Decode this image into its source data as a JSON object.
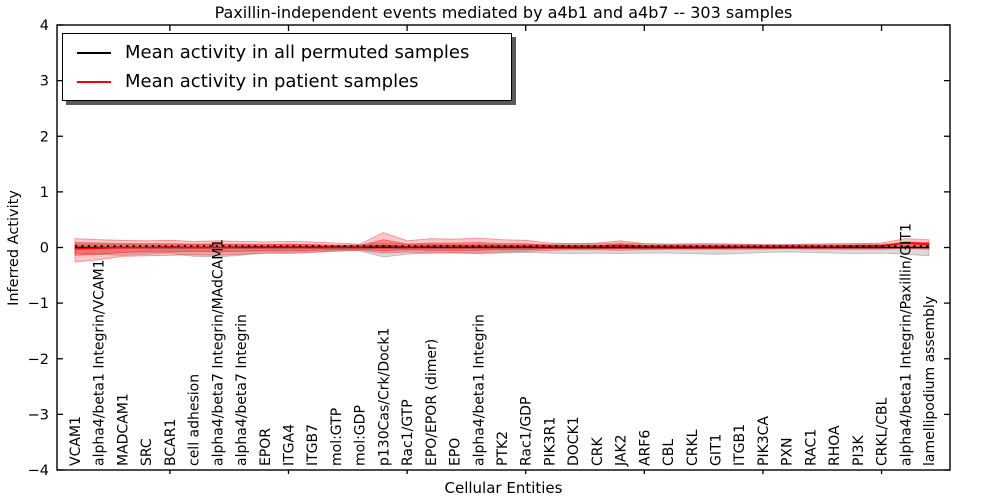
{
  "chart_data": {
    "type": "line",
    "title": "Paxillin-independent events mediated by a4b1 and a4b7 -- 303 samples",
    "xlabel": "Cellular Entities",
    "ylabel": "Inferred Activity",
    "ylim": [
      -4,
      4
    ],
    "yticks": [
      4,
      3,
      2,
      1,
      0,
      -1,
      -2,
      -3,
      -4
    ],
    "ytick_labels": [
      "4",
      "3",
      "2",
      "1",
      "0",
      "−1",
      "−2",
      "−3",
      "−4"
    ],
    "top_tick_indices": [
      4,
      9,
      14,
      19,
      24,
      29,
      34
    ],
    "grid": false,
    "legend": {
      "position": "upper left",
      "entries": [
        {
          "label": "Mean activity in all permuted samples",
          "color": "#000000"
        },
        {
          "label": "Mean activity in patient samples",
          "color": "#ff0000"
        }
      ]
    },
    "categories": [
      "VCAM1",
      "alpha4/beta1 Integrin/VCAM1",
      "MADCAM1",
      "SRC",
      "BCAR1",
      "cell adhesion",
      "alpha4/beta7 Integrin/MAdCAM1",
      "alpha4/beta7 Integrin",
      "EPOR",
      "ITGA4",
      "ITGB7",
      "mol:GTP",
      "mol:GDP",
      "p130Cas/Crk/Dock1",
      "Rac1/GTP",
      "EPO/EPOR (dimer)",
      "EPO",
      "alpha4/beta1 Integrin",
      "PTK2",
      "Rac1/GDP",
      "PIK3R1",
      "DOCK1",
      "CRK",
      "JAK2",
      "ARF6",
      "CBL",
      "CRKL",
      "GIT1",
      "ITGB1",
      "PIK3CA",
      "PXN",
      "RAC1",
      "RHOA",
      "PI3K",
      "CRKL/CBL",
      "alpha4/beta1 Integrin/Paxillin/GIT1",
      "lamellipodium assembly"
    ],
    "series": [
      {
        "name": "Mean activity in all permuted samples",
        "color": "#000000",
        "values": [
          0,
          0,
          0,
          0,
          0,
          0,
          0,
          0,
          0,
          0,
          0,
          0,
          0,
          0,
          0,
          0,
          0,
          0,
          0,
          0,
          0,
          0,
          0,
          0,
          0,
          0,
          0,
          0,
          0,
          0,
          0,
          0,
          0,
          0,
          0,
          0,
          0
        ]
      },
      {
        "name": "Mean activity in patient samples",
        "color": "#ff0000",
        "values": [
          -0.02,
          -0.01,
          0,
          0,
          0.01,
          0,
          0,
          0.01,
          0.01,
          0.01,
          0.01,
          0.01,
          0.01,
          0.03,
          0.01,
          0.02,
          0.02,
          0.02,
          0.02,
          0.02,
          0.02,
          0.02,
          0.02,
          0.03,
          0.02,
          0.02,
          0.02,
          0.02,
          0.02,
          0.02,
          0.02,
          0.02,
          0.02,
          0.03,
          0.03,
          0.08,
          0.06
        ]
      }
    ],
    "bands": [
      {
        "name": "permuted-range",
        "color": "#777777",
        "opacity": 0.28,
        "upper": [
          0.06,
          0.06,
          0.06,
          0.05,
          0.05,
          0.06,
          0.06,
          0.05,
          0.05,
          0.05,
          0.05,
          0.04,
          0.05,
          0.08,
          0.06,
          0.06,
          0.05,
          0.06,
          0.05,
          0.05,
          0.06,
          0.07,
          0.07,
          0.08,
          0.07,
          0.06,
          0.07,
          0.07,
          0.06,
          0.05,
          0.05,
          0.06,
          0.07,
          0.07,
          0.06,
          0.06,
          0.05
        ],
        "lower": [
          -0.1,
          -0.12,
          -0.14,
          -0.12,
          -0.1,
          -0.16,
          -0.17,
          -0.14,
          -0.1,
          -0.09,
          -0.08,
          -0.06,
          -0.06,
          -0.17,
          -0.12,
          -0.1,
          -0.1,
          -0.11,
          -0.1,
          -0.09,
          -0.1,
          -0.11,
          -0.1,
          -0.11,
          -0.1,
          -0.1,
          -0.11,
          -0.12,
          -0.11,
          -0.09,
          -0.08,
          -0.09,
          -0.1,
          -0.11,
          -0.1,
          -0.12,
          -0.15
        ]
      },
      {
        "name": "patient-range-outer",
        "color": "#ff0000",
        "opacity": 0.22,
        "upper": [
          0.16,
          0.14,
          0.13,
          0.12,
          0.13,
          0.11,
          0.12,
          0.11,
          0.1,
          0.11,
          0.1,
          0.08,
          0.06,
          0.27,
          0.12,
          0.16,
          0.15,
          0.17,
          0.14,
          0.13,
          0.08,
          0.07,
          0.08,
          0.12,
          0.07,
          0.06,
          0.06,
          0.06,
          0.06,
          0.05,
          0.05,
          0.06,
          0.06,
          0.07,
          0.08,
          0.16,
          0.14
        ],
        "lower": [
          -0.26,
          -0.22,
          -0.16,
          -0.15,
          -0.14,
          -0.13,
          -0.14,
          -0.12,
          -0.1,
          -0.11,
          -0.09,
          -0.07,
          -0.05,
          -0.1,
          -0.08,
          -0.1,
          -0.09,
          -0.1,
          -0.08,
          -0.07,
          -0.05,
          -0.04,
          -0.04,
          -0.05,
          -0.04,
          -0.03,
          -0.03,
          -0.03,
          -0.03,
          -0.03,
          -0.02,
          -0.03,
          -0.03,
          -0.03,
          -0.03,
          -0.02,
          -0.03
        ]
      },
      {
        "name": "patient-range-inner",
        "color": "#ff0000",
        "opacity": 0.3,
        "upper": [
          0.09,
          0.08,
          0.07,
          0.07,
          0.07,
          0.06,
          0.06,
          0.06,
          0.05,
          0.06,
          0.05,
          0.04,
          0.03,
          0.14,
          0.06,
          0.08,
          0.08,
          0.09,
          0.07,
          0.07,
          0.04,
          0.04,
          0.04,
          0.06,
          0.04,
          0.03,
          0.03,
          0.03,
          0.03,
          0.03,
          0.03,
          0.03,
          0.03,
          0.04,
          0.04,
          0.1,
          0.09
        ],
        "lower": [
          -0.14,
          -0.12,
          -0.09,
          -0.08,
          -0.08,
          -0.07,
          -0.08,
          -0.07,
          -0.06,
          -0.06,
          -0.05,
          -0.04,
          -0.03,
          -0.06,
          -0.04,
          -0.05,
          -0.05,
          -0.05,
          -0.04,
          -0.04,
          -0.02,
          -0.02,
          -0.02,
          -0.02,
          -0.02,
          -0.02,
          -0.02,
          -0.02,
          -0.01,
          -0.01,
          -0.01,
          -0.01,
          -0.01,
          -0.01,
          -0.01,
          0.0,
          -0.01
        ]
      }
    ]
  }
}
